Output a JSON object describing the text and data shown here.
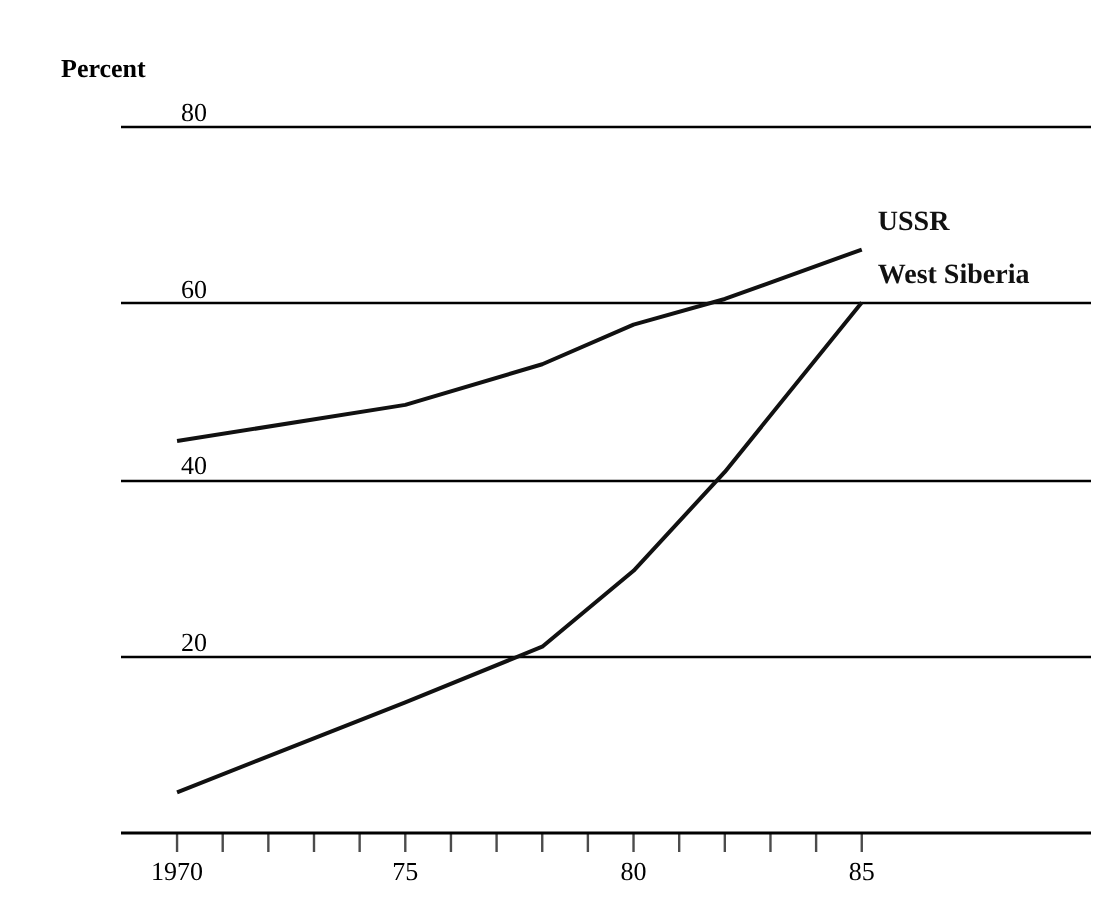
{
  "chart_data": {
    "type": "line",
    "ylabel": "Percent",
    "x": [
      1970,
      1975,
      1978,
      1980,
      1982,
      1985
    ],
    "series": [
      {
        "name": "USSR",
        "color": "#111111",
        "values": [
          44.3,
          48.4,
          53,
          57.5,
          60.4,
          66
        ]
      },
      {
        "name": "West Siberia",
        "color": "#111111",
        "values": [
          4.5,
          14.7,
          21,
          29.6,
          40.8,
          60
        ]
      }
    ],
    "xlim": [
      1968.75,
      1990
    ],
    "ylim": [
      0,
      80
    ],
    "xticks": [
      {
        "value": 1970,
        "label": "1970"
      },
      {
        "value": 1971,
        "label": null
      },
      {
        "value": 1972,
        "label": null
      },
      {
        "value": 1973,
        "label": null
      },
      {
        "value": 1974,
        "label": null
      },
      {
        "value": 1975,
        "label": "75"
      },
      {
        "value": 1976,
        "label": null
      },
      {
        "value": 1977,
        "label": null
      },
      {
        "value": 1978,
        "label": null
      },
      {
        "value": 1979,
        "label": null
      },
      {
        "value": 1980,
        "label": "80"
      },
      {
        "value": 1981,
        "label": null
      },
      {
        "value": 1982,
        "label": null
      },
      {
        "value": 1983,
        "label": null
      },
      {
        "value": 1984,
        "label": null
      },
      {
        "value": 1985,
        "label": "85"
      }
    ],
    "yticks": [
      20,
      40,
      60,
      80
    ],
    "grid": "y",
    "marker": "none",
    "line_style": "solid",
    "legend": false
  }
}
